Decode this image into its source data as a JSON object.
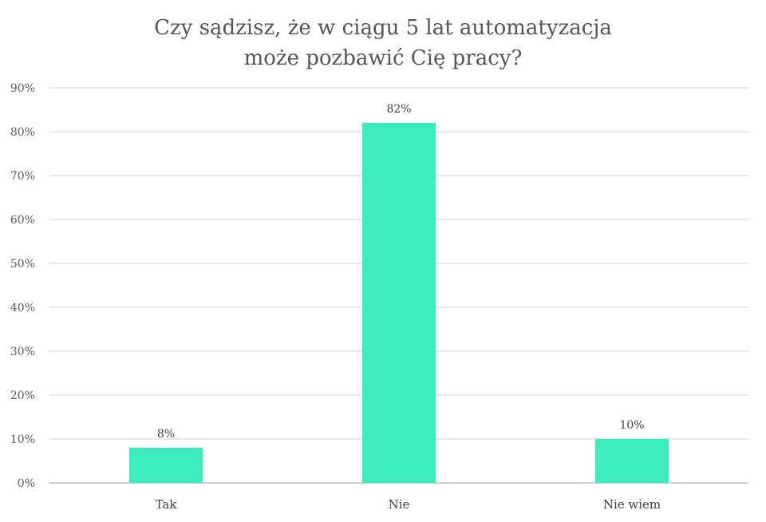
{
  "chart_data": {
    "type": "bar",
    "title_lines": [
      "Czy sądzisz, że w ciągu 5 lat automatyzacja",
      "może pozbawić Cię pracy?"
    ],
    "categories": [
      "Tak",
      "Nie",
      "Nie wiem"
    ],
    "values": [
      8,
      82,
      10
    ],
    "data_labels": [
      "8%",
      "82%",
      "10%"
    ],
    "ylim": [
      0,
      90
    ],
    "yticks": [
      0,
      10,
      20,
      30,
      40,
      50,
      60,
      70,
      80,
      90
    ],
    "ytick_labels": [
      "0%",
      "10%",
      "20%",
      "30%",
      "40%",
      "50%",
      "60%",
      "70%",
      "80%",
      "90%"
    ],
    "xlabel": "",
    "ylabel": "",
    "grid": true,
    "legend": "none",
    "bar_color": "#3DEDBE",
    "grid_color": "#D0D0D0",
    "axis_color": "#BFBFBF"
  }
}
